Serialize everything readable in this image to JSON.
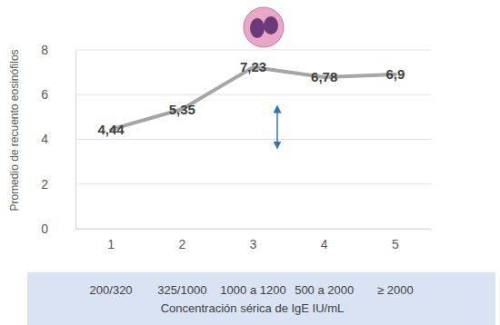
{
  "chart_data": {
    "type": "line",
    "ylabel": "Promedio de recuento eosinófilos",
    "xlabel": "Concentración sérica de IgE IU/mL",
    "categories": [
      "1",
      "2",
      "3",
      "4",
      "5"
    ],
    "category_ranges": [
      "200/320",
      "325/1000",
      "1000 a 1200",
      "500 a 2000",
      "≥ 2000"
    ],
    "values": [
      4.44,
      5.35,
      7.23,
      6.78,
      6.9
    ],
    "value_labels": [
      "4,44",
      "5,35",
      "7,23",
      "6,78",
      "6,9"
    ],
    "color": "#a5a5a5",
    "ylim": [
      0,
      8
    ],
    "yticks": [
      0,
      2,
      4,
      6,
      8
    ],
    "grid": true,
    "data_labels": true
  }
}
